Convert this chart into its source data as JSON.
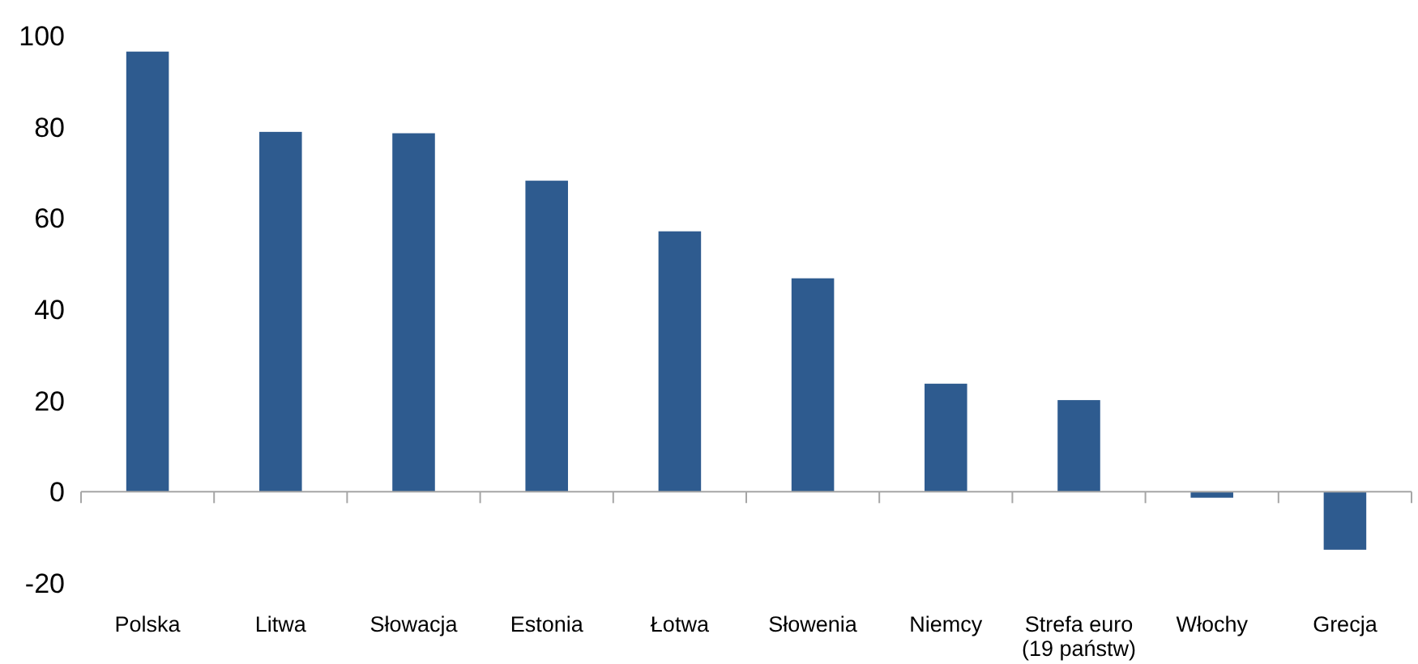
{
  "chart_data": {
    "type": "bar",
    "categories": [
      "Polska",
      "Litwa",
      "Słowacja",
      "Estonia",
      "Łotwa",
      "Słowenia",
      "Niemcy",
      "Strefa euro (19 państw)",
      "Włochy",
      "Grecja"
    ],
    "values": [
      96.5,
      78.9,
      78.6,
      68.2,
      57.1,
      46.8,
      23.7,
      20.1,
      -1.3,
      -12.7
    ],
    "color": "#2e5b8f",
    "ylim": [
      -20,
      100
    ],
    "yticks": [
      -20,
      0,
      20,
      40,
      60,
      80,
      100
    ]
  }
}
